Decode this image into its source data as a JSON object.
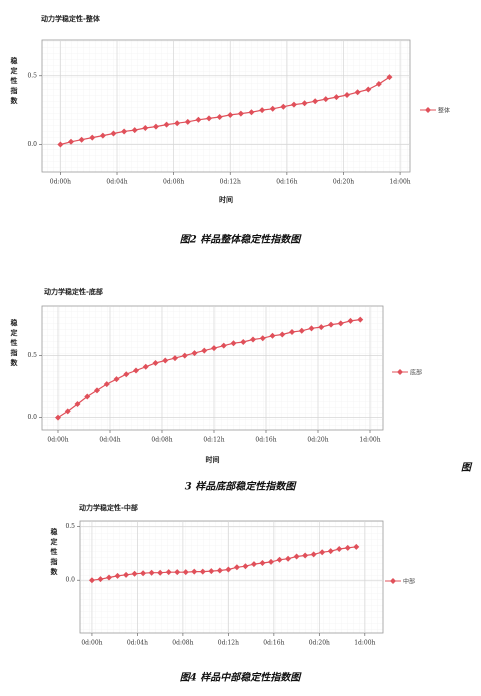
{
  "chart_data": [
    {
      "type": "line",
      "title": "动力学稳定性-整体",
      "x_label": "时间",
      "y_label": "稳定性指数",
      "x": [
        0,
        0.75,
        1.5,
        2.25,
        3,
        3.75,
        4.5,
        5.25,
        6,
        6.75,
        7.5,
        8.25,
        9,
        9.75,
        10.5,
        11.25,
        12,
        12.75,
        13.5,
        14.25,
        15,
        15.75,
        16.5,
        17.25,
        18,
        18.75,
        19.5,
        20.25,
        21,
        21.75,
        22.5,
        23.25
      ],
      "series": [
        {
          "name": "整体",
          "color": "#e0505a",
          "values": [
            0,
            0.02,
            0.035,
            0.05,
            0.065,
            0.08,
            0.095,
            0.105,
            0.12,
            0.13,
            0.145,
            0.155,
            0.165,
            0.18,
            0.19,
            0.2,
            0.215,
            0.225,
            0.235,
            0.25,
            0.26,
            0.275,
            0.29,
            0.3,
            0.315,
            0.33,
            0.345,
            0.36,
            0.38,
            0.4,
            0.44,
            0.49
          ]
        }
      ],
      "xlim": [
        -1.3,
        24.7
      ],
      "ylim": [
        -0.2,
        0.76
      ],
      "xticks": [
        {
          "value": 0,
          "label": "0d:00h"
        },
        {
          "value": 4,
          "label": "0d:04h"
        },
        {
          "value": 8,
          "label": "0d:08h"
        },
        {
          "value": 12,
          "label": "0d:12h"
        },
        {
          "value": 16,
          "label": "0d:16h"
        },
        {
          "value": 20,
          "label": "0d:20h"
        },
        {
          "value": 24,
          "label": "1d:00h"
        }
      ],
      "yticks": [
        {
          "value": 0,
          "label": "0.0"
        },
        0.5
      ],
      "grid": true,
      "legend": "right"
    },
    {
      "type": "line",
      "title": "动力学稳定性-底部",
      "x_label": "时间",
      "y_label": "稳定性指数",
      "x": [
        0,
        0.75,
        1.5,
        2.25,
        3,
        3.75,
        4.5,
        5.25,
        6,
        6.75,
        7.5,
        8.25,
        9,
        9.75,
        10.5,
        11.25,
        12,
        12.75,
        13.5,
        14.25,
        15,
        15.75,
        16.5,
        17.25,
        18,
        18.75,
        19.5,
        20.25,
        21,
        21.75,
        22.5,
        23.25
      ],
      "series": [
        {
          "name": "底部",
          "color": "#e0505a",
          "values": [
            0,
            0.05,
            0.11,
            0.17,
            0.22,
            0.27,
            0.31,
            0.35,
            0.38,
            0.41,
            0.44,
            0.46,
            0.48,
            0.5,
            0.52,
            0.54,
            0.56,
            0.58,
            0.6,
            0.61,
            0.63,
            0.64,
            0.66,
            0.67,
            0.69,
            0.7,
            0.72,
            0.73,
            0.75,
            0.76,
            0.78,
            0.79
          ]
        }
      ],
      "xlim": [
        -1.23,
        25
      ],
      "ylim": [
        -0.1,
        0.9
      ],
      "xticks": [
        {
          "value": 0,
          "label": "0d:00h"
        },
        {
          "value": 4,
          "label": "0d:04h"
        },
        {
          "value": 8,
          "label": "0d:08h"
        },
        {
          "value": 12,
          "label": "0d:12h"
        },
        {
          "value": 16,
          "label": "0d:16h"
        },
        {
          "value": 20,
          "label": "0d:20h"
        },
        {
          "value": 24,
          "label": "1d:00h"
        }
      ],
      "yticks": [
        {
          "value": 0,
          "label": "0.0"
        },
        0.5
      ],
      "grid": true,
      "legend": "right"
    },
    {
      "type": "line",
      "title": "动力学稳定性-中部",
      "y_label": "稳定性指数",
      "x": [
        0,
        0.75,
        1.5,
        2.25,
        3,
        3.75,
        4.5,
        5.25,
        6,
        6.75,
        7.5,
        8.25,
        9,
        9.75,
        10.5,
        11.25,
        12,
        12.75,
        13.5,
        14.25,
        15,
        15.75,
        16.5,
        17.25,
        18,
        18.75,
        19.5,
        20.25,
        21,
        21.75,
        22.5,
        23.25
      ],
      "series": [
        {
          "name": "中部",
          "color": "#e0505a",
          "values": [
            0,
            0.01,
            0.025,
            0.04,
            0.05,
            0.06,
            0.065,
            0.07,
            0.07,
            0.075,
            0.075,
            0.075,
            0.08,
            0.08,
            0.085,
            0.09,
            0.1,
            0.12,
            0.13,
            0.15,
            0.16,
            0.17,
            0.19,
            0.2,
            0.22,
            0.23,
            0.24,
            0.26,
            0.27,
            0.29,
            0.3,
            0.31
          ]
        }
      ],
      "xlim": [
        -1.05,
        25.6
      ],
      "ylim": [
        -0.49,
        0.55
      ],
      "xticks": [
        {
          "value": 0,
          "label": "0d:00h"
        },
        {
          "value": 4,
          "label": "0d:04h"
        },
        {
          "value": 8,
          "label": "0d:08h"
        },
        {
          "value": 12,
          "label": "0d:12h"
        },
        {
          "value": 16,
          "label": "0d:16h"
        },
        {
          "value": 20,
          "label": "0d:20h"
        },
        {
          "value": 24,
          "label": "1d:00h"
        }
      ],
      "yticks": [
        {
          "value": 0,
          "label": "0.0"
        },
        0.5
      ],
      "grid": true,
      "legend": "right"
    }
  ],
  "captions": [
    "图2 样品整体稳定性指数图",
    "3 样品底部稳定性指数图",
    "图",
    "图4 样品中部稳定性指数图"
  ]
}
